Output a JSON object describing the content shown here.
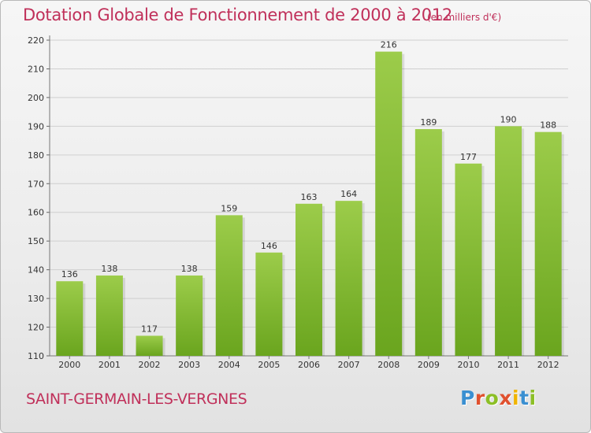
{
  "header": {
    "title": "Dotation Globale de Fonctionnement de 2000 à 2012",
    "subtitle": "(en milliers d'€)"
  },
  "footer": {
    "place": "SAINT-GERMAIN-LES-VERGNES",
    "brand": "Proxiti",
    "brand_colors": [
      "#3a8fd1",
      "#e0512f",
      "#8cbf26",
      "#e0512f",
      "#f0b400",
      "#3a8fd1",
      "#8cbf26"
    ]
  },
  "colors": {
    "accent": "#c0305a",
    "bar_top": "#9ccc4a",
    "bar_bottom": "#6aa51e",
    "grid": "#cfcfcf"
  },
  "chart_data": {
    "type": "bar",
    "categories": [
      "2000",
      "2001",
      "2002",
      "2003",
      "2004",
      "2005",
      "2006",
      "2007",
      "2008",
      "2009",
      "2010",
      "2011",
      "2012"
    ],
    "values": [
      136,
      138,
      117,
      138,
      159,
      146,
      163,
      164,
      216,
      189,
      177,
      190,
      188
    ],
    "ylim": [
      110,
      220
    ],
    "yticks": [
      110,
      120,
      130,
      140,
      150,
      160,
      170,
      180,
      190,
      200,
      210,
      220
    ],
    "grid": true
  }
}
